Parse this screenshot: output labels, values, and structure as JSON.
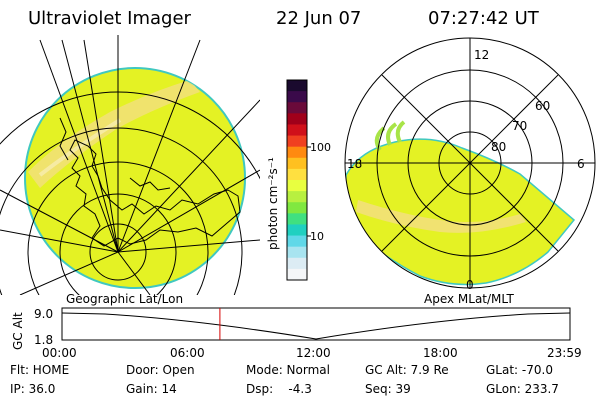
{
  "header": {
    "instrument": "Ultraviolet Imager",
    "date": "22 Jun 07",
    "time": "07:27:42 UT"
  },
  "geo_panel": {
    "label": "Geographic Lat/Lon"
  },
  "polar_panel": {
    "label": "Apex MLat/MLT",
    "mlt_labels": [
      "12",
      "18",
      "6",
      "0"
    ],
    "mlat_labels": [
      "60",
      "70",
      "80"
    ]
  },
  "colorbar": {
    "unit_label": "photon cm⁻²s⁻¹",
    "tick_labels": [
      "100",
      "10"
    ],
    "colors": [
      "#1a0a2e",
      "#3a0a4a",
      "#6a0a3a",
      "#a0001a",
      "#d0101a",
      "#f04020",
      "#ff8a10",
      "#ffc020",
      "#ffe040",
      "#e8ff40",
      "#b8f040",
      "#80e840",
      "#40e080",
      "#20d0c0",
      "#60d8e8",
      "#a8e4f0",
      "#dcecf4",
      "#f4f6f8"
    ]
  },
  "altitude_plot": {
    "ylabel": "GC Alt",
    "yticks": [
      "9.0",
      "1.8"
    ],
    "xticks": [
      "00:00",
      "06:00",
      "12:00",
      "18:00",
      "23:59"
    ],
    "cursor_hour": 7.46
  },
  "status": {
    "filter": "Flt: HOME",
    "door": "Door: Open",
    "mode": "Mode: Normal",
    "gc_alt": "GC Alt: 7.9 Re",
    "glat": "GLat: -70.0",
    "ip": "IP: 36.0",
    "gain": "Gain: 14",
    "dsp": "Dsp:    -4.3",
    "seq": "Seq: 39",
    "glon": "GLon: 233.7"
  },
  "colors": {
    "aurora_base": "#e4f224",
    "aurora_bright": "#f2e07a",
    "cursor": "#d40000"
  }
}
